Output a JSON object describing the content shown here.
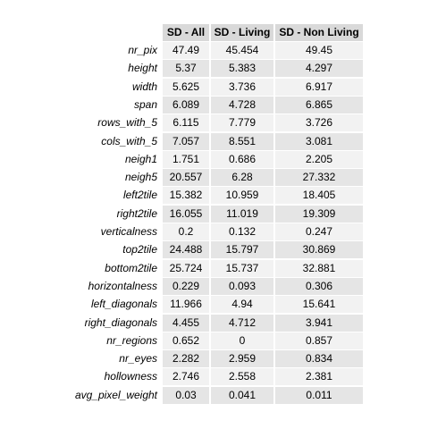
{
  "chart_data": {
    "type": "table",
    "columns": [
      "SD - All",
      "SD - Living",
      "SD - Non Living"
    ],
    "rows": [
      {
        "label": "nr_pix",
        "values": [
          "47.49",
          "45.454",
          "49.45"
        ]
      },
      {
        "label": "height",
        "values": [
          "5.37",
          "5.383",
          "4.297"
        ]
      },
      {
        "label": "width",
        "values": [
          "5.625",
          "3.736",
          "6.917"
        ]
      },
      {
        "label": "span",
        "values": [
          "6.089",
          "4.728",
          "6.865"
        ]
      },
      {
        "label": "rows_with_5",
        "values": [
          "6.115",
          "7.779",
          "3.726"
        ]
      },
      {
        "label": "cols_with_5",
        "values": [
          "7.057",
          "8.551",
          "3.081"
        ]
      },
      {
        "label": "neigh1",
        "values": [
          "1.751",
          "0.686",
          "2.205"
        ]
      },
      {
        "label": "neigh5",
        "values": [
          "20.557",
          "6.28",
          "27.332"
        ]
      },
      {
        "label": "left2tile",
        "values": [
          "15.382",
          "10.959",
          "18.405"
        ]
      },
      {
        "label": "right2tile",
        "values": [
          "16.055",
          "11.019",
          "19.309"
        ]
      },
      {
        "label": "verticalness",
        "values": [
          "0.2",
          "0.132",
          "0.247"
        ]
      },
      {
        "label": "top2tile",
        "values": [
          "24.488",
          "15.797",
          "30.869"
        ]
      },
      {
        "label": "bottom2tile",
        "values": [
          "25.724",
          "15.737",
          "32.881"
        ]
      },
      {
        "label": "horizontalness",
        "values": [
          "0.229",
          "0.093",
          "0.306"
        ]
      },
      {
        "label": "left_diagonals",
        "values": [
          "11.966",
          "4.94",
          "15.641"
        ]
      },
      {
        "label": "right_diagonals",
        "values": [
          "4.455",
          "4.712",
          "3.941"
        ]
      },
      {
        "label": "nr_regions",
        "values": [
          "0.652",
          "0",
          "0.857"
        ]
      },
      {
        "label": "nr_eyes",
        "values": [
          "2.282",
          "2.959",
          "0.834"
        ]
      },
      {
        "label": "hollowness",
        "values": [
          "2.746",
          "2.558",
          "2.381"
        ]
      },
      {
        "label": "avg_pixel_weight",
        "values": [
          "0.03",
          "0.041",
          "0.011"
        ]
      }
    ],
    "colors": {
      "header": "#d9d9d9",
      "row_dark": "#e5e5e5",
      "row_light": "#f2f2f2"
    }
  }
}
